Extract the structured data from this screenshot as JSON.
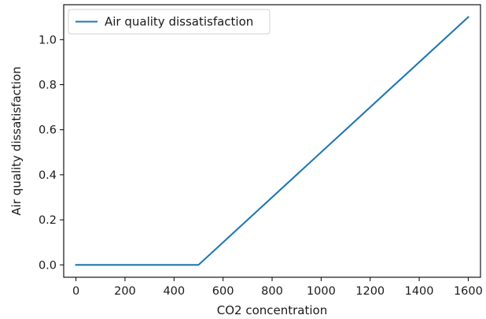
{
  "chart_data": {
    "type": "line",
    "title": "",
    "xlabel": "CO2 concentration",
    "ylabel": "Air quality dissatisfaction",
    "xlim": [
      -50,
      1650
    ],
    "ylim": [
      -0.055,
      1.155
    ],
    "xticks": [
      0,
      200,
      400,
      600,
      800,
      1000,
      1200,
      1400,
      1600
    ],
    "xtick_labels": [
      "0",
      "200",
      "400",
      "600",
      "800",
      "1000",
      "1200",
      "1400",
      "1600"
    ],
    "yticks": [
      0.0,
      0.2,
      0.4,
      0.6,
      0.8,
      1.0
    ],
    "ytick_labels": [
      "0.0",
      "0.2",
      "0.4",
      "0.6",
      "0.8",
      "1.0"
    ],
    "grid": false,
    "legend": {
      "position": "upper-left"
    },
    "series": [
      {
        "name": "Air quality dissatisfaction",
        "color": "#1f77b4",
        "x": [
          0,
          500,
          1600
        ],
        "y": [
          0.0,
          0.0,
          1.1
        ]
      }
    ]
  }
}
